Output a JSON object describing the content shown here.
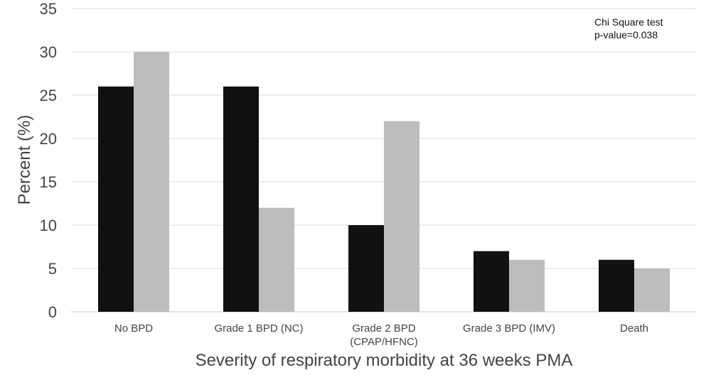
{
  "chart_data": {
    "type": "bar",
    "categories": [
      [
        "No BPD"
      ],
      [
        "Grade 1 BPD (NC)"
      ],
      [
        "Grade 2 BPD",
        "(CPAP/HFNC)"
      ],
      [
        "Grade 3 BPD (IMV)"
      ],
      [
        "Death"
      ]
    ],
    "series": [
      {
        "values": [
          26,
          26,
          10,
          7,
          6
        ],
        "color": "#111111"
      },
      {
        "values": [
          30,
          12,
          22,
          6,
          5
        ],
        "color": "#bdbdbd"
      }
    ],
    "xlabel": "Severity of respiratory morbidity at 36 weeks PMA",
    "ylabel": "Percent (%)",
    "ylim": [
      0,
      35
    ],
    "yticks": [
      0,
      5,
      10,
      15,
      20,
      25,
      30,
      35
    ],
    "grid": true,
    "legend": "none",
    "annotation": [
      "Chi Square test",
      "p-value=0.038"
    ],
    "gridline_color": "#d9d9d9",
    "axis_color": "#d9d9d9"
  }
}
